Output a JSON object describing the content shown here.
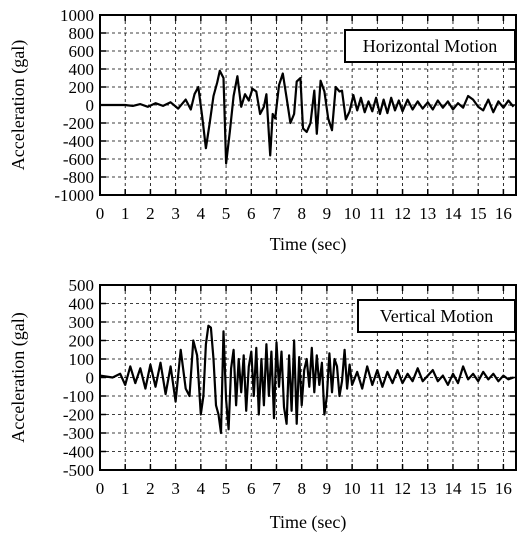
{
  "chart_data": [
    {
      "type": "line",
      "title": "Horizontal Motion",
      "xlabel": "Time (sec)",
      "ylabel": "Acceleration (gal)",
      "xlim": [
        0,
        16.5
      ],
      "ylim": [
        -1000,
        1000
      ],
      "xticks": [
        "0",
        "1",
        "2",
        "3",
        "4",
        "5",
        "6",
        "7",
        "8",
        "9",
        "10",
        "11",
        "12",
        "13",
        "14",
        "15",
        "16"
      ],
      "yticks": [
        "1000",
        "800",
        "600",
        "400",
        "200",
        "0",
        "-200",
        "-400",
        "-600",
        "-800",
        "-1000"
      ],
      "grid": true,
      "legend_position": "top-right",
      "series": [
        {
          "x": [
            0,
            1.0,
            1.3,
            1.6,
            1.9,
            2.2,
            2.5,
            2.8,
            3.1,
            3.4,
            3.6,
            3.75,
            3.9,
            4.05,
            4.2,
            4.35,
            4.5,
            4.65,
            4.75,
            4.9,
            5.0,
            5.15,
            5.3,
            5.45,
            5.6,
            5.75,
            5.9,
            6.05,
            6.2,
            6.35,
            6.5,
            6.6,
            6.75,
            6.85,
            6.95,
            7.1,
            7.25,
            7.4,
            7.55,
            7.7,
            7.8,
            7.95,
            8.05,
            8.2,
            8.35,
            8.5,
            8.6,
            8.75,
            8.9,
            9.05,
            9.2,
            9.35,
            9.5,
            9.6,
            9.75,
            9.9,
            10.05,
            10.2,
            10.35,
            10.5,
            10.65,
            10.8,
            10.95,
            11.1,
            11.25,
            11.4,
            11.55,
            11.7,
            11.85,
            12.0,
            12.2,
            12.4,
            12.6,
            12.8,
            13.0,
            13.2,
            13.4,
            13.6,
            13.8,
            14.0,
            14.2,
            14.4,
            14.6,
            14.8,
            15.0,
            15.2,
            15.4,
            15.6,
            15.8,
            16.0,
            16.2,
            16.4
          ],
          "y": [
            0,
            0,
            -10,
            10,
            -20,
            20,
            -10,
            30,
            -40,
            60,
            -50,
            120,
            200,
            -120,
            -480,
            -200,
            100,
            250,
            380,
            300,
            -650,
            -300,
            100,
            320,
            -20,
            120,
            50,
            180,
            150,
            -100,
            -20,
            120,
            -560,
            -100,
            -150,
            220,
            350,
            80,
            -200,
            -100,
            260,
            300,
            -260,
            -300,
            -200,
            160,
            -320,
            270,
            150,
            -150,
            -280,
            200,
            150,
            160,
            -160,
            -70,
            110,
            -60,
            80,
            -80,
            40,
            -70,
            80,
            -100,
            60,
            -90,
            80,
            -60,
            50,
            -70,
            60,
            -50,
            40,
            -40,
            30,
            -50,
            50,
            -30,
            40,
            -50,
            20,
            -30,
            100,
            60,
            -20,
            -60,
            60,
            -80,
            40,
            -30,
            50,
            -20
          ]
        }
      ]
    },
    {
      "type": "line",
      "title": "Vertical Motion",
      "xlabel": "Time (sec)",
      "ylabel": "Acceleration  (gal)",
      "xlim": [
        0,
        16.5
      ],
      "ylim": [
        -500,
        500
      ],
      "xticks": [
        "0",
        "1",
        "2",
        "3",
        "4",
        "5",
        "6",
        "7",
        "8",
        "9",
        "10",
        "11",
        "12",
        "13",
        "14",
        "15",
        "16"
      ],
      "yticks": [
        "500",
        "400",
        "300",
        "200",
        "100",
        "0",
        "-100",
        "-200",
        "-300",
        "-400",
        "-500"
      ],
      "grid": true,
      "legend_position": "top-right",
      "series": [
        {
          "x": [
            0,
            0.5,
            0.8,
            1.0,
            1.2,
            1.4,
            1.6,
            1.8,
            2.0,
            2.2,
            2.4,
            2.6,
            2.8,
            3.0,
            3.2,
            3.4,
            3.55,
            3.7,
            3.85,
            4.0,
            4.1,
            4.2,
            4.3,
            4.4,
            4.5,
            4.6,
            4.7,
            4.8,
            4.9,
            5.0,
            5.1,
            5.2,
            5.3,
            5.4,
            5.5,
            5.6,
            5.7,
            5.8,
            5.9,
            6.0,
            6.1,
            6.2,
            6.3,
            6.4,
            6.5,
            6.6,
            6.7,
            6.8,
            6.9,
            7.0,
            7.1,
            7.2,
            7.3,
            7.4,
            7.5,
            7.6,
            7.7,
            7.8,
            7.9,
            8.0,
            8.1,
            8.2,
            8.3,
            8.4,
            8.5,
            8.6,
            8.7,
            8.8,
            8.9,
            9.0,
            9.1,
            9.2,
            9.3,
            9.4,
            9.5,
            9.6,
            9.7,
            9.8,
            9.9,
            10.0,
            10.2,
            10.4,
            10.6,
            10.8,
            11.0,
            11.2,
            11.4,
            11.6,
            11.8,
            12.0,
            12.2,
            12.4,
            12.6,
            12.8,
            13.0,
            13.2,
            13.4,
            13.6,
            13.8,
            14.0,
            14.2,
            14.4,
            14.6,
            14.8,
            15.0,
            15.2,
            15.4,
            15.6,
            15.8,
            16.0,
            16.2,
            16.4
          ],
          "y": [
            10,
            0,
            20,
            -40,
            60,
            -30,
            50,
            -60,
            70,
            -50,
            80,
            -90,
            60,
            -130,
            150,
            -60,
            -100,
            200,
            120,
            -200,
            -100,
            180,
            280,
            270,
            100,
            -150,
            -200,
            -300,
            250,
            -120,
            -280,
            50,
            150,
            -150,
            100,
            -80,
            120,
            -180,
            60,
            140,
            -100,
            160,
            -200,
            100,
            -150,
            180,
            -100,
            140,
            -220,
            190,
            -50,
            140,
            -160,
            -250,
            120,
            -180,
            200,
            -250,
            110,
            -150,
            40,
            100,
            -50,
            160,
            -80,
            120,
            -40,
            80,
            -200,
            -100,
            130,
            -80,
            100,
            60,
            -100,
            -20,
            150,
            -60,
            70,
            -40,
            30,
            -60,
            60,
            -40,
            40,
            -50,
            30,
            -30,
            40,
            -30,
            20,
            -20,
            50,
            -20,
            10,
            40,
            -20,
            10,
            -40,
            20,
            -30,
            60,
            -10,
            20,
            -20,
            30,
            -10,
            20,
            -20,
            10,
            -10,
            0
          ]
        }
      ]
    }
  ]
}
